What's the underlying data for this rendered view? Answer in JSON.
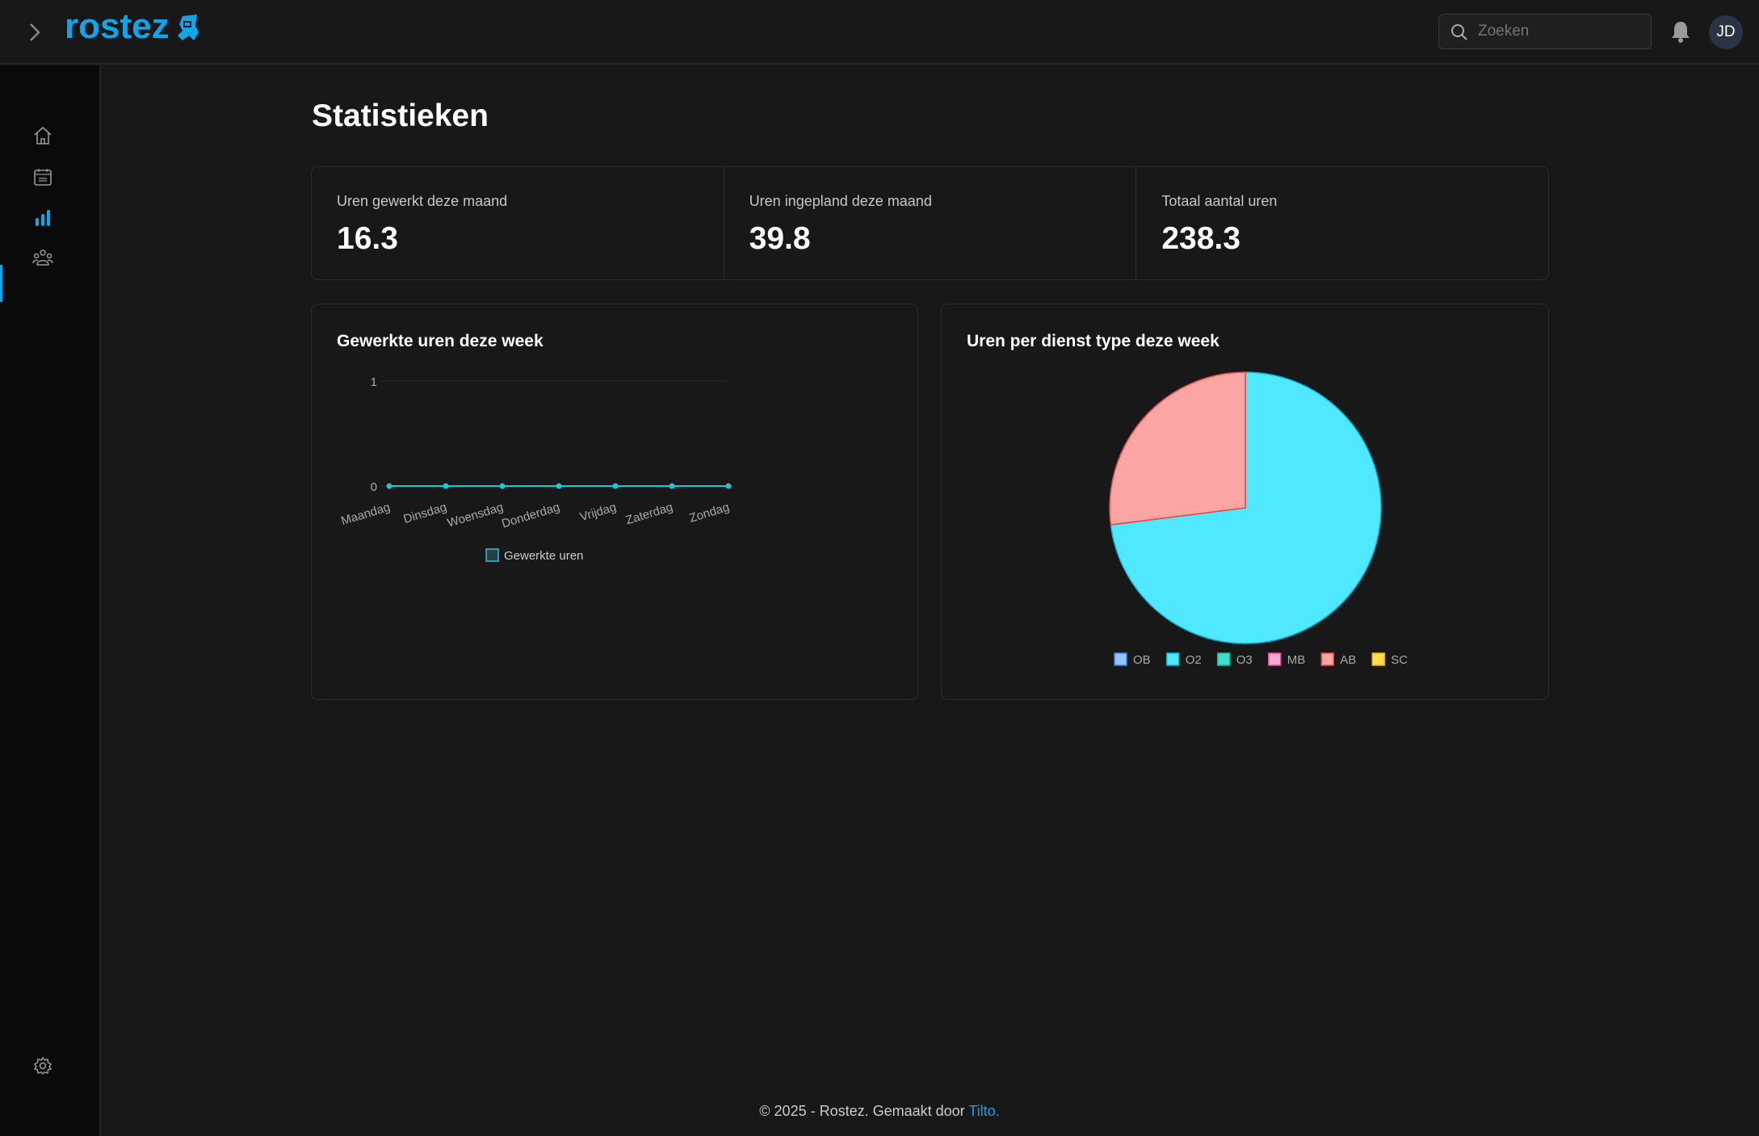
{
  "header": {
    "logo": "rostez",
    "search_placeholder": "Zoeken",
    "avatar_initials": "JD"
  },
  "sidebar": {
    "items": [
      {
        "icon": "home-icon"
      },
      {
        "icon": "calendar-icon"
      },
      {
        "icon": "bar-chart-icon",
        "active": true
      },
      {
        "icon": "users-icon"
      }
    ],
    "bottom": {
      "icon": "gear-icon"
    }
  },
  "page": {
    "title": "Statistieken"
  },
  "stats": [
    {
      "label": "Uren gewerkt deze maand",
      "value": "16.3"
    },
    {
      "label": "Uren ingepland deze maand",
      "value": "39.8"
    },
    {
      "label": "Totaal aantal uren",
      "value": "238.3"
    }
  ],
  "colors": {
    "accent": "#0ea5e9",
    "line": "#22c4dc"
  },
  "chart_data": [
    {
      "type": "line",
      "title": "Gewerkte uren deze week",
      "categories": [
        "Maandag",
        "Dinsdag",
        "Woensdag",
        "Donderdag",
        "Vrijdag",
        "Zaterdag",
        "Zondag"
      ],
      "series": [
        {
          "name": "Gewerkte uren",
          "values": [
            0,
            0,
            0,
            0,
            0,
            0,
            0
          ],
          "color": "#22c4dc"
        }
      ],
      "ylim": [
        0,
        1
      ],
      "yticks": [
        "0",
        "1"
      ],
      "legend": "bottom",
      "grid": true
    },
    {
      "type": "pie",
      "title": "Uren per dienst type deze week",
      "legend": "bottom",
      "slices": [
        {
          "label": "OB",
          "value": 0,
          "color": "#93c5fd",
          "border": "#3b82f6"
        },
        {
          "label": "O2",
          "value": 73,
          "color": "#4fe8ff",
          "border": "#06b6d4"
        },
        {
          "label": "O3",
          "value": 0,
          "color": "#40e0c8",
          "border": "#14b8a6"
        },
        {
          "label": "MB",
          "value": 0,
          "color": "#f9a8d4",
          "border": "#ec4899"
        },
        {
          "label": "AB",
          "value": 27,
          "color": "#fca5a5",
          "border": "#ef4444"
        },
        {
          "label": "SC",
          "value": 0,
          "color": "#fde047",
          "border": "#eab308"
        }
      ]
    }
  ],
  "footer": {
    "text": "© 2025 -  Rostez. Gemaakt door",
    "link": "Tilto."
  }
}
